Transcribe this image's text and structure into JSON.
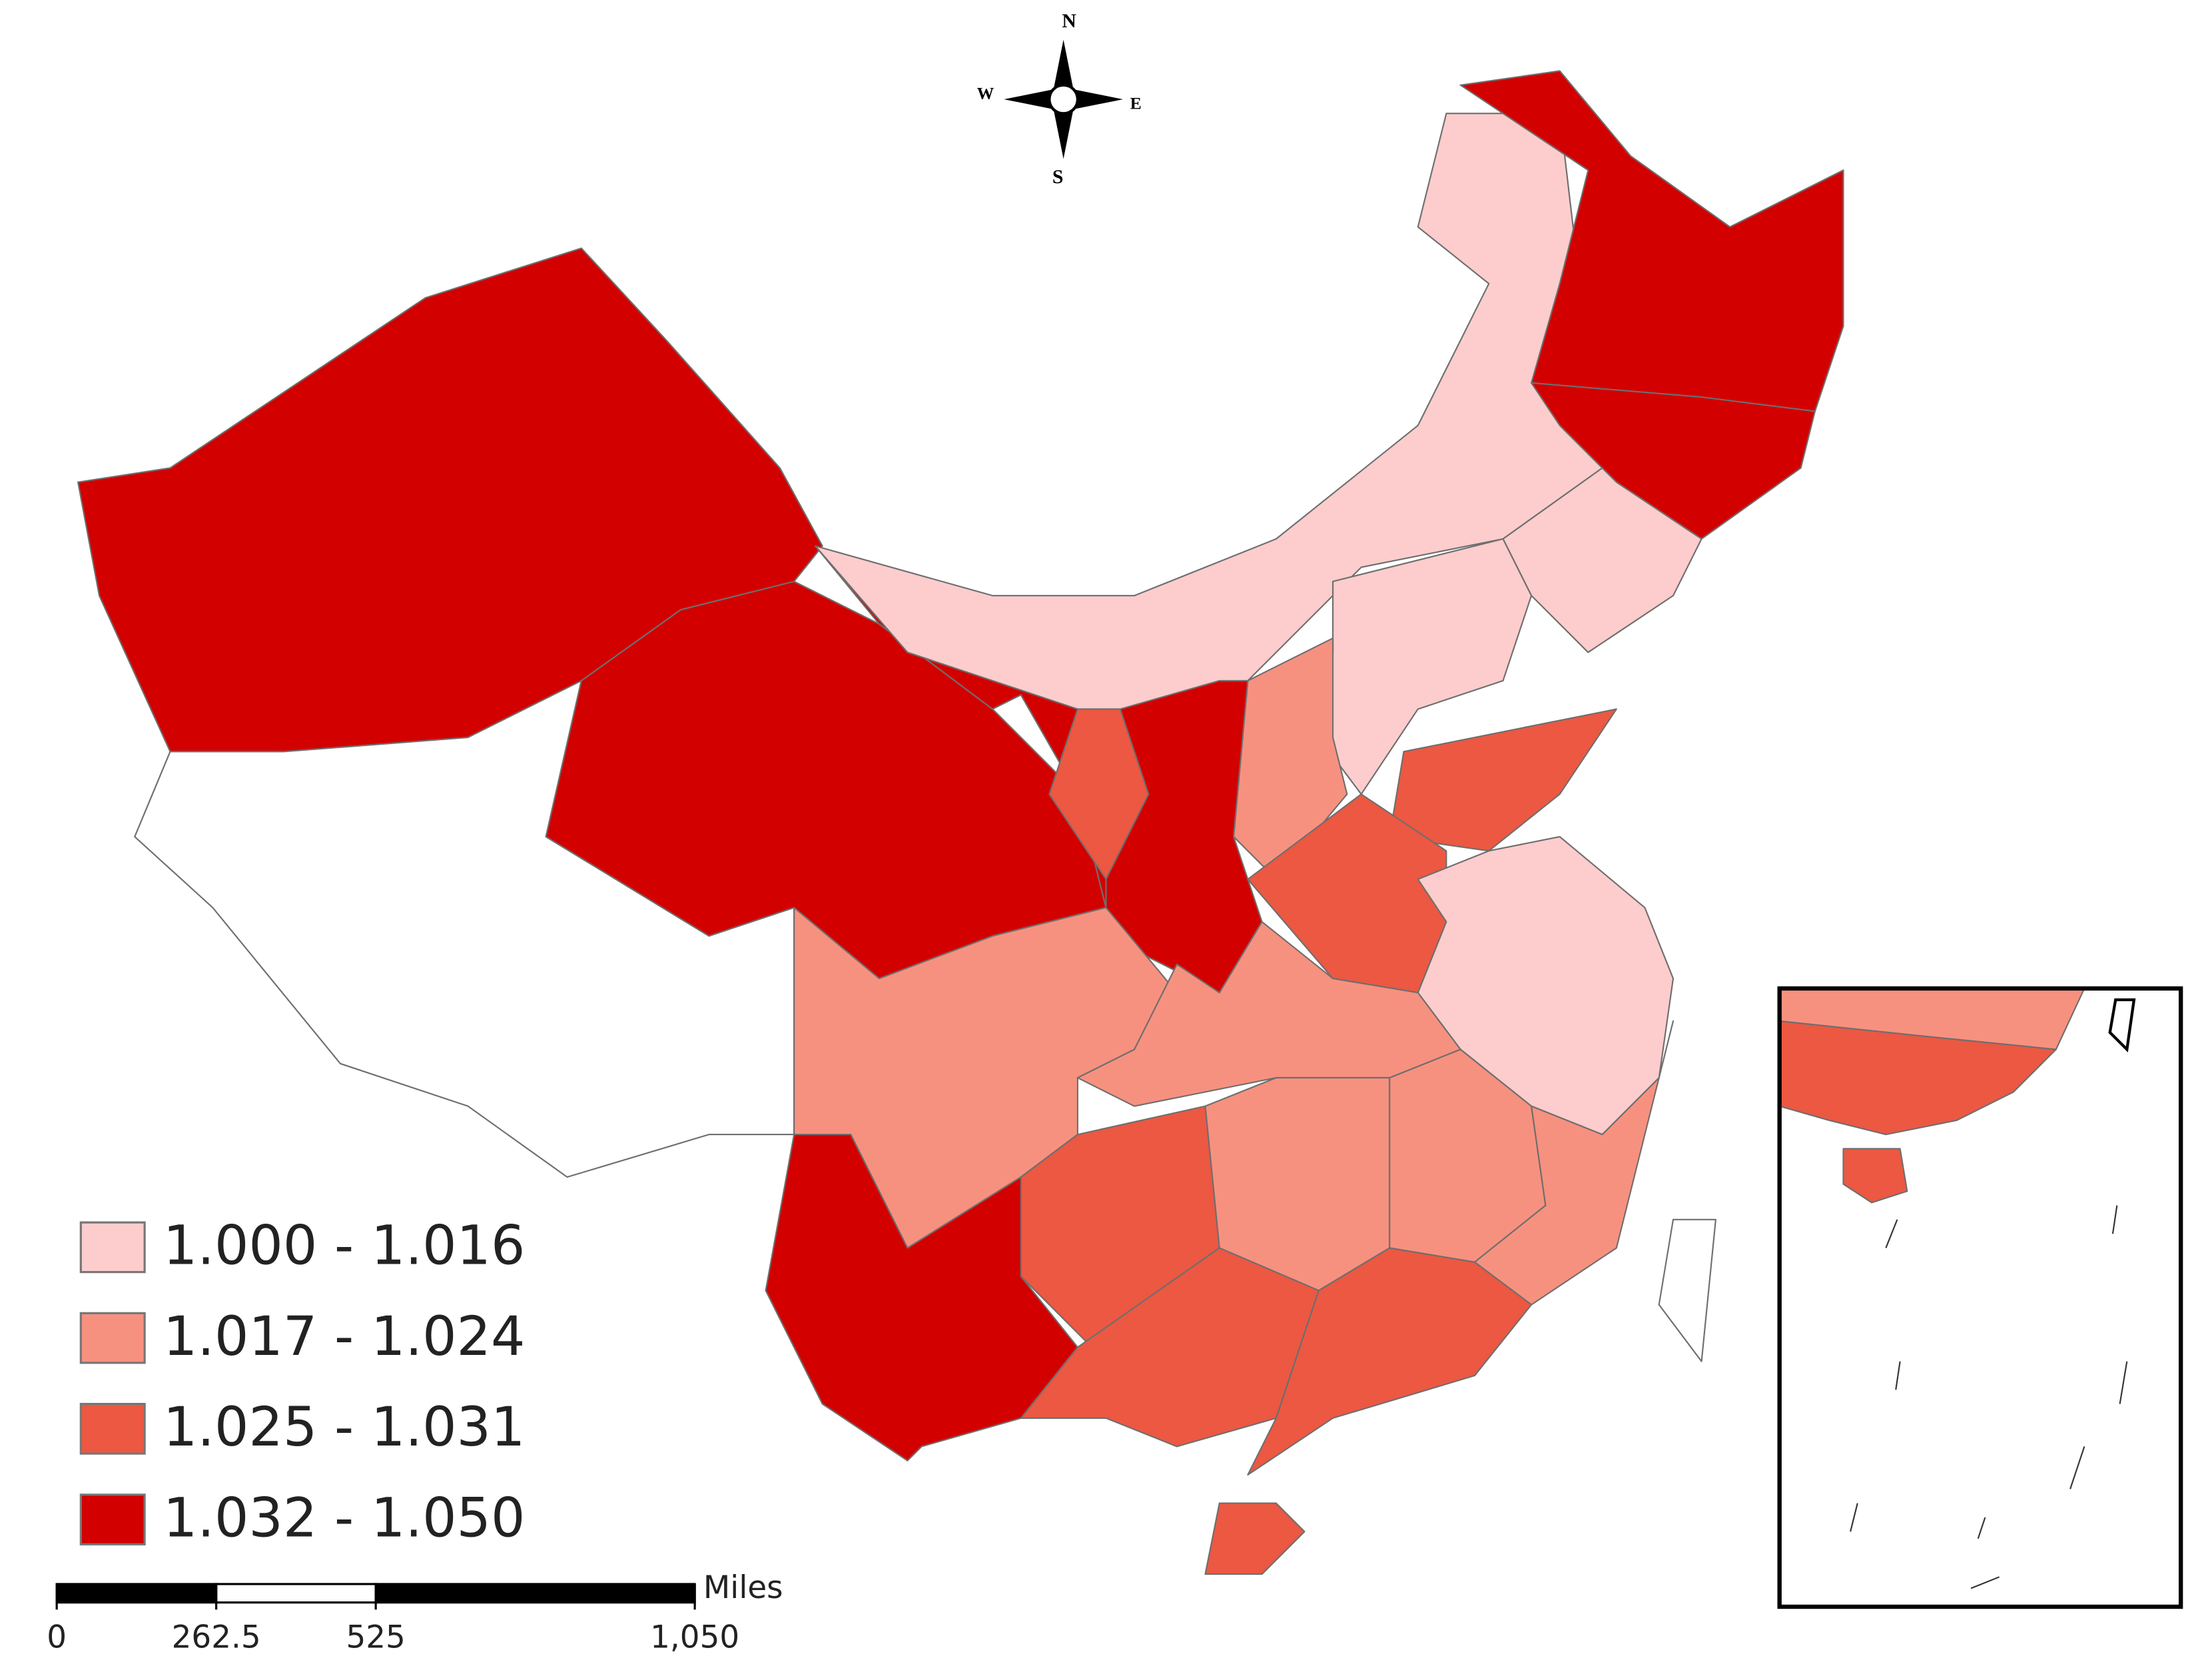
{
  "compass": {
    "north": "N",
    "south": "S",
    "east": "E",
    "west": "W"
  },
  "legend": {
    "classes": [
      {
        "label": "1.000 - 1.016",
        "color": "#fdcdcd"
      },
      {
        "label": "1.017 - 1.024",
        "color": "#f7917f"
      },
      {
        "label": "1.025 - 1.031",
        "color": "#ec5842"
      },
      {
        "label": "1.032 - 1.050",
        "color": "#d30000"
      }
    ]
  },
  "scale_bar": {
    "unit": "Miles",
    "ticks": [
      0,
      262.5,
      525,
      {
        "value": 1050,
        "label": "1,050"
      }
    ]
  }
}
